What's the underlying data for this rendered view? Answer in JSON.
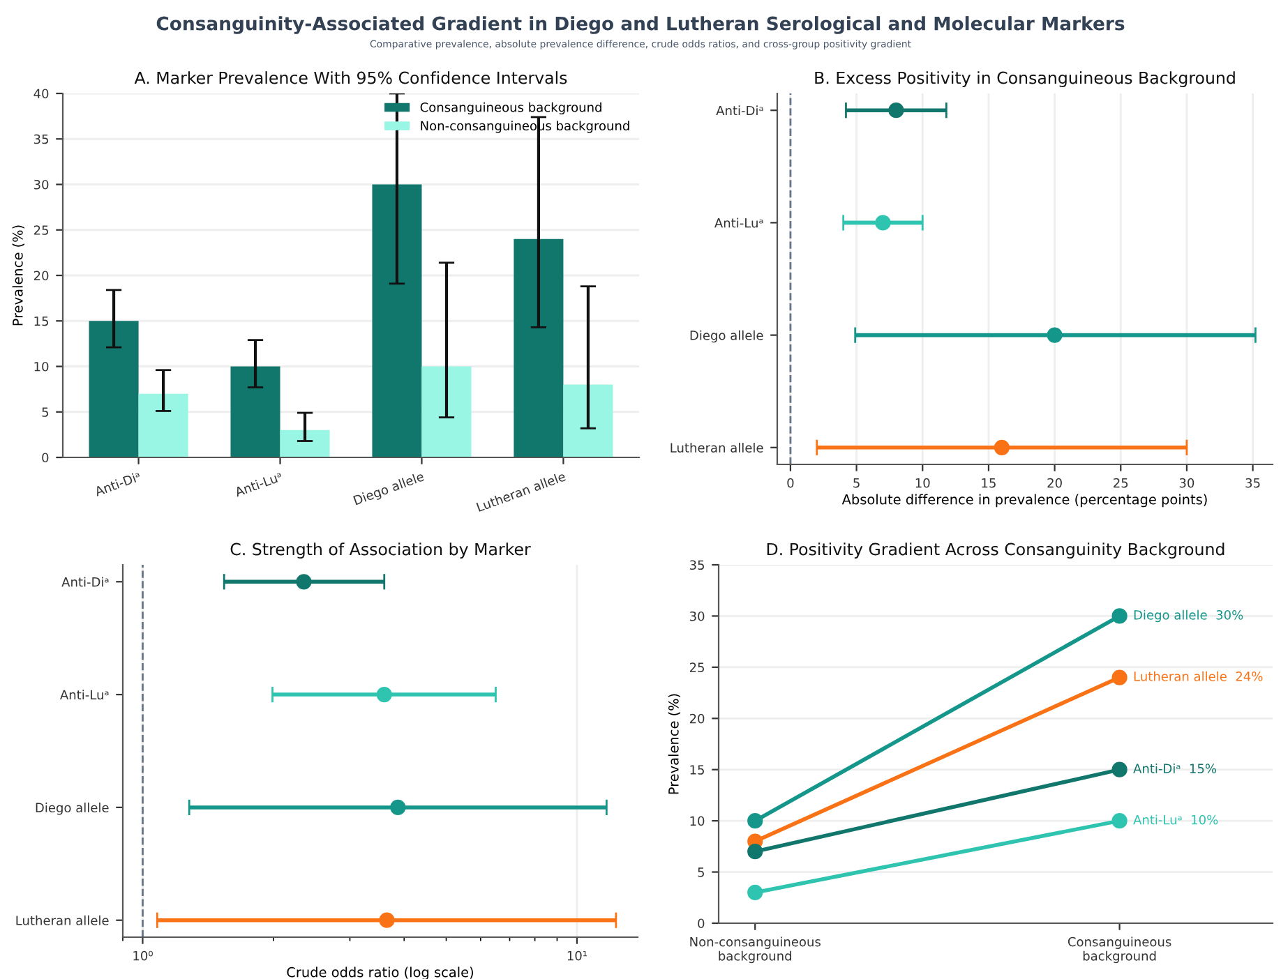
{
  "chart_data": [
    {
      "type": "bar",
      "title": "A. Marker Prevalence With 95% Confidence Intervals",
      "ylabel": "Prevalence (%)",
      "annotations": [
        "Consanguinity-Associated Gradient in Diego and Lutheran Serological and Molecular Markers",
        "Comparative prevalence, absolute prevalence difference, crude odds ratios, and cross-group positivity gradient"
      ],
      "categories": [
        "Anti-Diᵃ",
        "Anti-Luᵃ",
        "Diego allele",
        "Lutheran allele"
      ],
      "series": [
        {
          "name": "Consanguineous background",
          "color": "#11766c",
          "values": [
            15,
            10,
            30,
            24
          ],
          "errors": [
            [
              12.1,
              18.4
            ],
            [
              7.7,
              12.9
            ],
            [
              19.1,
              40
            ],
            [
              14.3,
              37.4
            ]
          ]
        },
        {
          "name": "Non-consanguineous background",
          "color": "#99f6e4",
          "values": [
            7,
            3,
            10,
            8
          ],
          "errors": [
            [
              5.1,
              9.6
            ],
            [
              1.8,
              4.9
            ],
            [
              4.4,
              21.4
            ],
            [
              3.2,
              18.8
            ]
          ]
        }
      ],
      "ylim": [
        0,
        40
      ],
      "yticks": [
        0,
        5,
        10,
        15,
        20,
        25,
        30,
        35,
        40
      ],
      "grid": "y",
      "legend": "top right"
    },
    {
      "type": "scatter",
      "orientation": "horizontal",
      "title": "B. Excess Positivity in Consanguineous Background",
      "xlabel": "Absolute difference in prevalence (percentage points)",
      "categories": [
        "Anti-Diᵃ",
        "Anti-Luᵃ",
        "Diego allele",
        "Lutheran allele"
      ],
      "values": [
        8,
        7,
        20,
        16
      ],
      "errors": [
        [
          4.2,
          11.8
        ],
        [
          4,
          10
        ],
        [
          4.9,
          35.2
        ],
        [
          2,
          30
        ]
      ],
      "colors": [
        "#11766c",
        "#2ec4b0",
        "#14968a",
        "#f97316"
      ],
      "xlim": [
        -1,
        36.5
      ],
      "xticks": [
        0,
        5,
        10,
        15,
        20,
        25,
        30,
        35
      ],
      "grid": "x",
      "marker": "circle",
      "ref_lines": [
        {
          "axis": "x",
          "value": 0,
          "color": "#64748b",
          "line_style": "dashed"
        }
      ]
    },
    {
      "type": "scatter",
      "orientation": "horizontal",
      "title": "C. Strength of Association by Marker",
      "xlabel": "Crude odds ratio (log scale)",
      "categories": [
        "Anti-Diᵃ",
        "Anti-Luᵃ",
        "Diego allele",
        "Lutheran allele"
      ],
      "values": [
        2.35,
        3.6,
        3.87,
        3.65
      ],
      "errors": [
        [
          1.54,
          3.6
        ],
        [
          1.99,
          6.5
        ],
        [
          1.28,
          11.7
        ],
        [
          1.08,
          12.3
        ]
      ],
      "colors": [
        "#11766c",
        "#2ec4b0",
        "#14968a",
        "#f97316"
      ],
      "log": "x",
      "xlim": [
        0.9,
        13.8
      ],
      "xticks": [
        {
          "value": 1,
          "label": "10⁰"
        },
        {
          "value": 10,
          "label": "10¹"
        }
      ],
      "grid": "x",
      "marker": "circle",
      "ref_lines": [
        {
          "axis": "x",
          "value": 1,
          "color": "#64748b",
          "line_style": "dashed"
        }
      ]
    },
    {
      "type": "line",
      "title": "D. Positivity Gradient Across Consanguinity Background",
      "ylabel": "Prevalence (%)",
      "categories": [
        "Non-consanguineous\nbackground",
        "Consanguineous\nbackground"
      ],
      "series": [
        {
          "name": "Diego allele",
          "color": "#14968a",
          "values": [
            10,
            30
          ],
          "value_labels": [
            null,
            "30%"
          ]
        },
        {
          "name": "Lutheran allele",
          "color": "#f97316",
          "values": [
            8,
            24
          ],
          "value_labels": [
            null,
            "24%"
          ]
        },
        {
          "name": "Anti-Diᵃ",
          "color": "#11766c",
          "values": [
            7,
            15
          ],
          "value_labels": [
            null,
            "15%"
          ]
        },
        {
          "name": "Anti-Luᵃ",
          "color": "#2ec4b0",
          "values": [
            3,
            10
          ],
          "value_labels": [
            null,
            "10%"
          ]
        }
      ],
      "ylim": [
        0,
        35
      ],
      "yticks": [
        0,
        5,
        10,
        15,
        20,
        25,
        30,
        35
      ],
      "grid": "y",
      "marker": "circle",
      "line_style": "solid"
    }
  ]
}
